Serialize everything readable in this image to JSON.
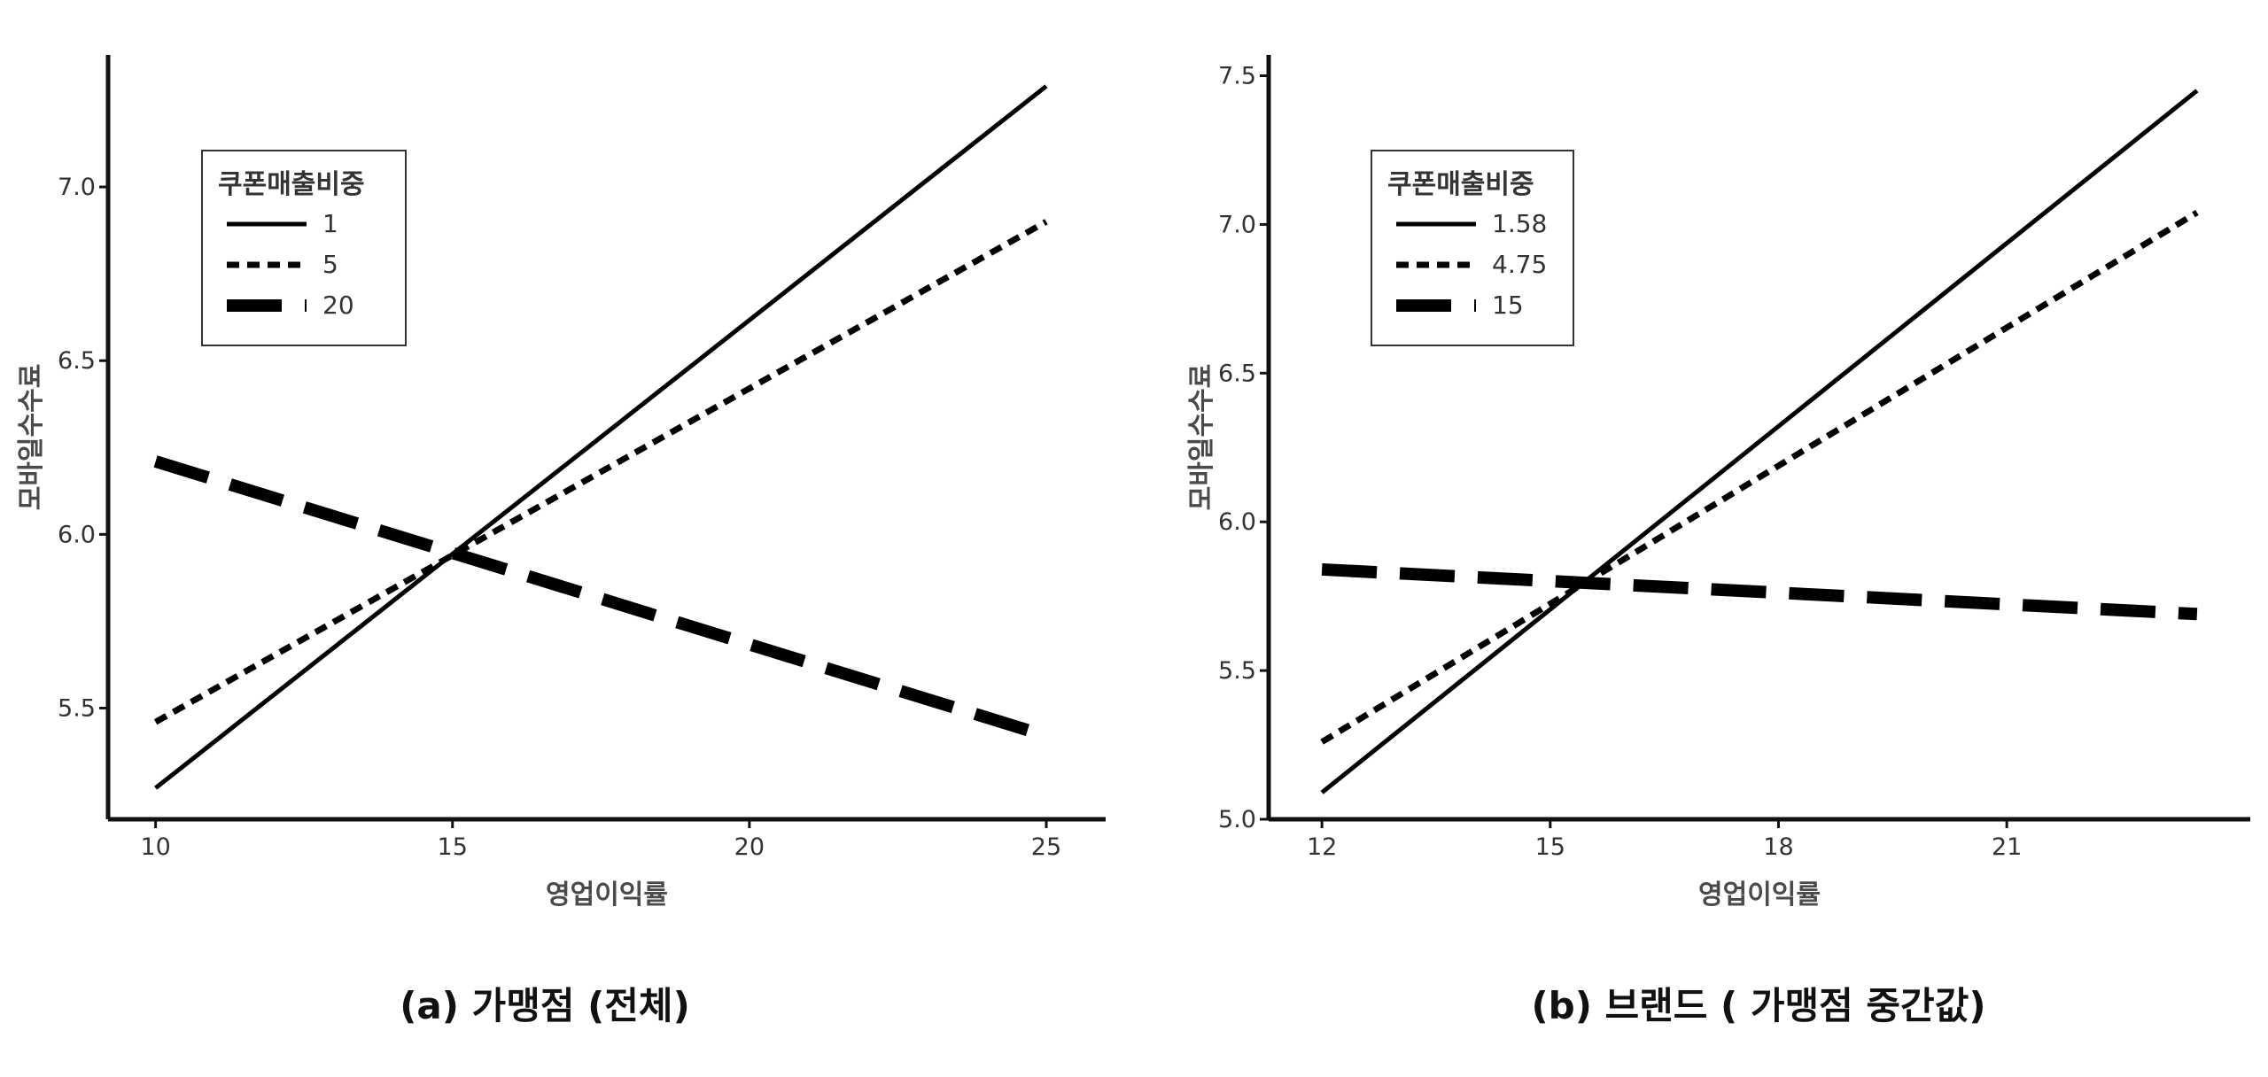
{
  "chart_data": [
    {
      "type": "line",
      "caption": "(a) 가맹점 (전체)",
      "xlabel": "영업이익률",
      "ylabel": "모바일수수료",
      "xlim": [
        9.2,
        26.0
      ],
      "ylim": [
        5.18,
        7.38
      ],
      "x_ticks": [
        "10",
        "15",
        "20",
        "25"
      ],
      "y_ticks": [
        "5.5",
        "6.0",
        "6.5",
        "7.0"
      ],
      "legend": {
        "title": "쿠폰매출비중",
        "position": "top-left"
      },
      "series": [
        {
          "name": "1",
          "style": "solid",
          "points": [
            [
              10,
              5.27
            ],
            [
              25,
              7.29
            ]
          ]
        },
        {
          "name": "5",
          "style": "dotted",
          "points": [
            [
              10,
              5.46
            ],
            [
              25,
              6.9
            ]
          ]
        },
        {
          "name": "20",
          "style": "dashed",
          "points": [
            [
              10,
              6.21
            ],
            [
              25,
              5.42
            ]
          ]
        }
      ]
    },
    {
      "type": "line",
      "caption": "(b) 브랜드 ( 가맹점 중간값)",
      "xlabel": "영업이익률",
      "ylabel": "모바일수수료",
      "xlim": [
        11.3,
        24.2
      ],
      "ylim": [
        5.0,
        7.57
      ],
      "x_ticks": [
        "12",
        "15",
        "18",
        "21"
      ],
      "y_ticks": [
        "5.0",
        "5.5",
        "6.0",
        "6.5",
        "7.0",
        "7.5"
      ],
      "legend": {
        "title": "쿠폰매출비중",
        "position": "top-left"
      },
      "series": [
        {
          "name": "1.58",
          "style": "solid",
          "points": [
            [
              12,
              5.09
            ],
            [
              23.5,
              7.45
            ]
          ]
        },
        {
          "name": "4.75",
          "style": "dotted",
          "points": [
            [
              12,
              5.26
            ],
            [
              23.5,
              7.04
            ]
          ]
        },
        {
          "name": "15",
          "style": "dashed",
          "points": [
            [
              12,
              5.84
            ],
            [
              23.5,
              5.69
            ]
          ]
        }
      ]
    }
  ]
}
